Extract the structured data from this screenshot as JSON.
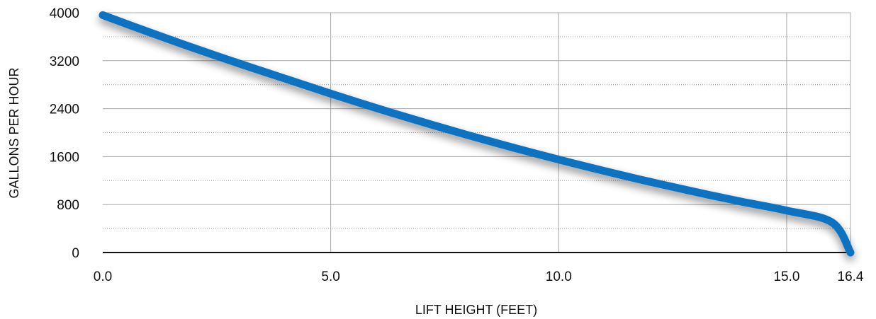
{
  "chart_data": {
    "type": "line",
    "title": "",
    "xlabel": "LIFT HEIGHT (FEET)",
    "ylabel": "GALLONS PER HOUR",
    "x_ticks": [
      "0.0",
      "5.0",
      "10.0",
      "15.0",
      "16.4"
    ],
    "x_tick_values": [
      0,
      5,
      10,
      15,
      16.4
    ],
    "y_ticks": [
      "0",
      "800",
      "1600",
      "2400",
      "3200",
      "4000"
    ],
    "y_tick_values": [
      0,
      800,
      1600,
      2400,
      3200,
      4000
    ],
    "y_minor_ticks": [
      400,
      1200,
      2000,
      2800,
      3600
    ],
    "xlim": [
      0,
      16.4
    ],
    "ylim": [
      0,
      4000
    ],
    "grid": true,
    "legend": "none",
    "series": [
      {
        "color": "#0a73c0",
        "x": [
          0,
          1,
          2,
          3,
          4,
          5,
          6,
          7,
          8,
          9,
          10,
          11,
          12,
          13,
          14,
          15,
          16,
          16.4
        ],
        "y": [
          3960,
          3680,
          3410,
          3150,
          2900,
          2650,
          2410,
          2180,
          1960,
          1750,
          1550,
          1360,
          1180,
          1010,
          850,
          700,
          500,
          0
        ]
      }
    ]
  }
}
